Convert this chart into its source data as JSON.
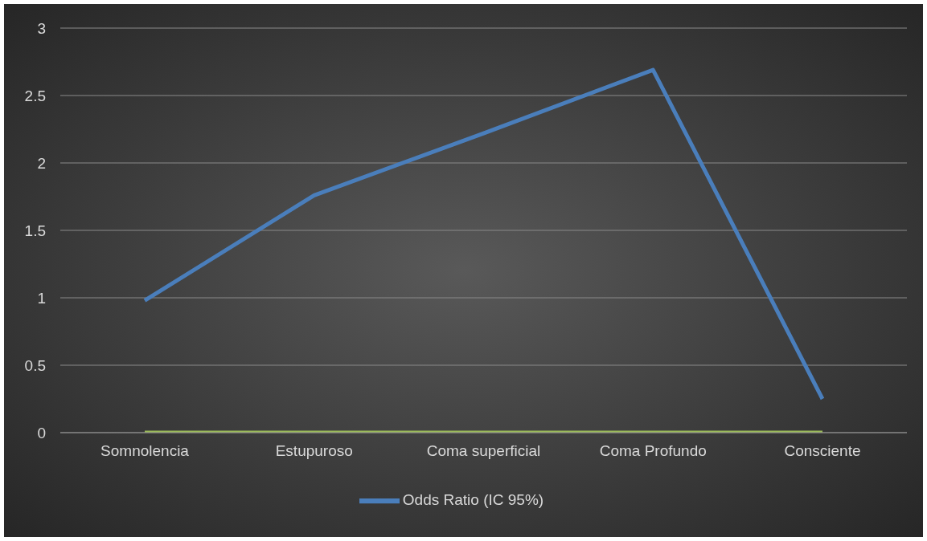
{
  "chart_data": {
    "type": "line",
    "categories": [
      "Somnolencia",
      "Estupuroso",
      "Coma superficial",
      "Coma Profundo",
      "Consciente"
    ],
    "series": [
      {
        "name": "Odds Ratio (IC 95%)",
        "color": "#4a7ebb",
        "values": [
          0.98,
          1.76,
          2.22,
          2.69,
          0.25
        ]
      },
      {
        "color": "#9bbb59",
        "values": [
          0,
          0,
          0,
          0,
          0
        ]
      }
    ],
    "ylim": [
      0,
      3
    ],
    "yticks": [
      0,
      0.5,
      1,
      1.5,
      2,
      2.5,
      3
    ],
    "grid": "y",
    "legend": "bottom",
    "marker": "none",
    "line_style": "solid"
  }
}
